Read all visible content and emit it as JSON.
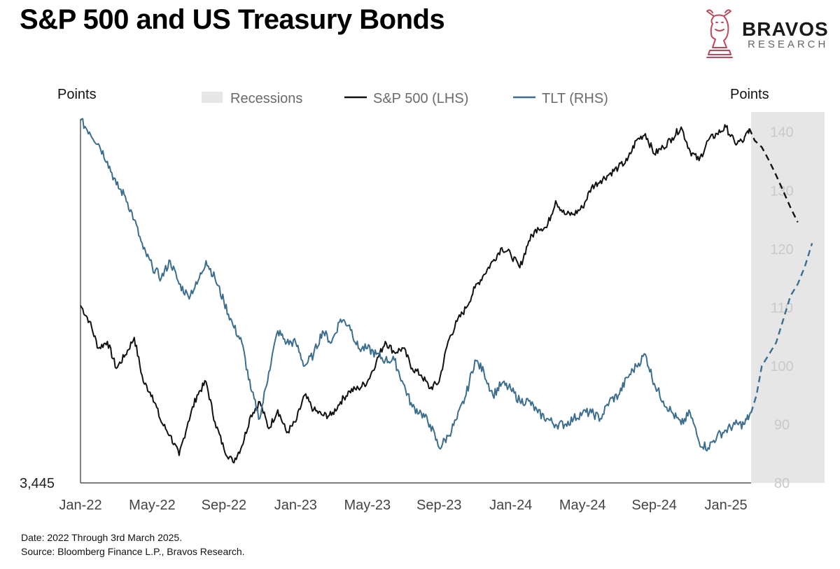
{
  "header": {
    "title": "S&P 500 and US Treasury Bonds",
    "brand_name": "BRAVOS",
    "brand_sub": "RESEARCH"
  },
  "footer": {
    "date_note": "Date: 2022 Through 3rd March 2025.",
    "source_note": "Source: Bloomberg Finance L.P., Bravos Research."
  },
  "colors": {
    "spx": "#111111",
    "tlt": "#3b6e8f",
    "recession": "#e6e6e6",
    "right_tick": "#c9c9c9",
    "axis": "#333333",
    "logo": "#c0485a"
  },
  "chart_data": {
    "type": "line",
    "title": "S&P 500 and US Treasury Bonds",
    "left_axis_label": "Points",
    "right_axis_label": "Points",
    "left_axis_min_label": "3,445",
    "left_axis_range": [
      3445,
      6150
    ],
    "right_axis_range": [
      80,
      142
    ],
    "right_axis_ticks": [
      "140",
      "130",
      "120",
      "110",
      "100",
      "90",
      "80"
    ],
    "x_ticks": [
      "Jan-22",
      "May-22",
      "Sep-22",
      "Jan-23",
      "May-23",
      "Sep-23",
      "Jan-24",
      "May-24",
      "Sep-24",
      "Jan-25"
    ],
    "x_range_months": [
      0,
      41.5
    ],
    "legend": [
      {
        "label": "Recessions",
        "kind": "recession"
      },
      {
        "label": "S&P 500 (LHS)",
        "kind": "spx"
      },
      {
        "label": "TLT (RHS)",
        "kind": "tlt"
      }
    ],
    "legend_position": "top-center",
    "shaded_projection_region_months": [
      37.4,
      41.5
    ],
    "series": [
      {
        "name": "S&P 500 (LHS)",
        "axis": "left",
        "x_months": [
          0,
          0.5,
          1,
          1.5,
          2,
          2.5,
          3,
          3.5,
          4,
          4.5,
          5,
          5.5,
          6,
          6.5,
          7,
          7.5,
          8,
          8.5,
          9,
          9.5,
          10,
          10.5,
          11,
          11.5,
          12,
          12.5,
          13,
          13.5,
          14,
          14.5,
          15,
          15.5,
          16,
          16.5,
          17,
          17.5,
          18,
          18.5,
          19,
          19.5,
          20,
          20.5,
          21,
          21.5,
          22,
          22.5,
          23,
          23.5,
          24,
          24.5,
          25,
          25.5,
          26,
          26.5,
          27,
          27.5,
          28,
          28.5,
          29,
          29.5,
          30,
          30.5,
          31,
          31.5,
          32,
          32.5,
          33,
          33.5,
          34,
          34.5,
          35,
          35.5,
          36,
          36.5,
          37,
          37.3
        ],
        "values": [
          4770,
          4650,
          4450,
          4500,
          4300,
          4400,
          4530,
          4200,
          4100,
          3900,
          3800,
          3650,
          3900,
          4100,
          4200,
          3900,
          3700,
          3600,
          3720,
          3950,
          4050,
          3850,
          3990,
          3820,
          3900,
          4100,
          3990,
          3950,
          3950,
          4050,
          4130,
          4150,
          4200,
          4350,
          4500,
          4420,
          4450,
          4300,
          4250,
          4150,
          4200,
          4500,
          4650,
          4750,
          4900,
          5000,
          5100,
          5200,
          5150,
          5050,
          5250,
          5350,
          5350,
          5550,
          5450,
          5450,
          5500,
          5650,
          5700,
          5750,
          5800,
          5850,
          6000,
          6050,
          5900,
          5950,
          6020,
          6100,
          5920,
          5850,
          6000,
          6050,
          6100,
          5980,
          6000,
          6090
        ]
      },
      {
        "name": "S&P 500 projection (LHS)",
        "axis": "left",
        "style": "dashed",
        "x_months": [
          37.3,
          37.6,
          38,
          38.4,
          38.8,
          39.2,
          39.6,
          40
        ],
        "values": [
          6090,
          6000,
          5950,
          5850,
          5740,
          5620,
          5500,
          5390
        ]
      },
      {
        "name": "TLT (RHS)",
        "axis": "right",
        "x_months": [
          0,
          0.5,
          1,
          1.5,
          2,
          2.5,
          3,
          3.5,
          4,
          4.5,
          5,
          5.5,
          6,
          6.5,
          7,
          7.5,
          8,
          8.5,
          9,
          9.5,
          10,
          10.5,
          11,
          11.5,
          12,
          12.5,
          13,
          13.5,
          14,
          14.5,
          15,
          15.5,
          16,
          16.5,
          17,
          17.5,
          18,
          18.5,
          19,
          19.5,
          20,
          20.5,
          21,
          21.5,
          22,
          22.5,
          23,
          23.5,
          24,
          24.5,
          25,
          25.5,
          26,
          26.5,
          27,
          27.5,
          28,
          28.5,
          29,
          29.5,
          30,
          30.5,
          31,
          31.5,
          32,
          32.5,
          33,
          33.5,
          34,
          34.5,
          35,
          35.5,
          36,
          36.5,
          37,
          37.4
        ],
        "values": [
          142,
          140,
          138,
          135,
          131,
          129,
          125,
          120,
          117,
          115,
          118,
          114,
          112,
          114,
          118,
          115,
          111,
          107,
          104,
          96,
          91,
          99,
          106,
          104,
          104,
          100,
          102,
          106,
          104,
          108,
          107,
          103,
          103,
          102,
          101,
          101,
          97,
          93,
          92,
          90,
          86,
          88,
          91,
          95,
          101,
          99,
          95,
          97,
          96,
          94,
          94,
          92,
          91,
          90,
          90,
          91,
          92,
          92,
          91,
          94,
          95,
          98,
          100,
          102,
          97,
          94,
          92,
          90,
          92,
          87,
          86,
          88,
          89,
          90,
          90,
          92
        ]
      },
      {
        "name": "TLT projection (RHS)",
        "axis": "right",
        "style": "dashed",
        "x_months": [
          37.4,
          37.7,
          38,
          38.4,
          38.8,
          39.2,
          39.6,
          40,
          40.4,
          40.8
        ],
        "values": [
          92,
          95,
          100,
          102,
          104,
          108,
          112,
          114,
          117,
          121
        ]
      }
    ]
  }
}
